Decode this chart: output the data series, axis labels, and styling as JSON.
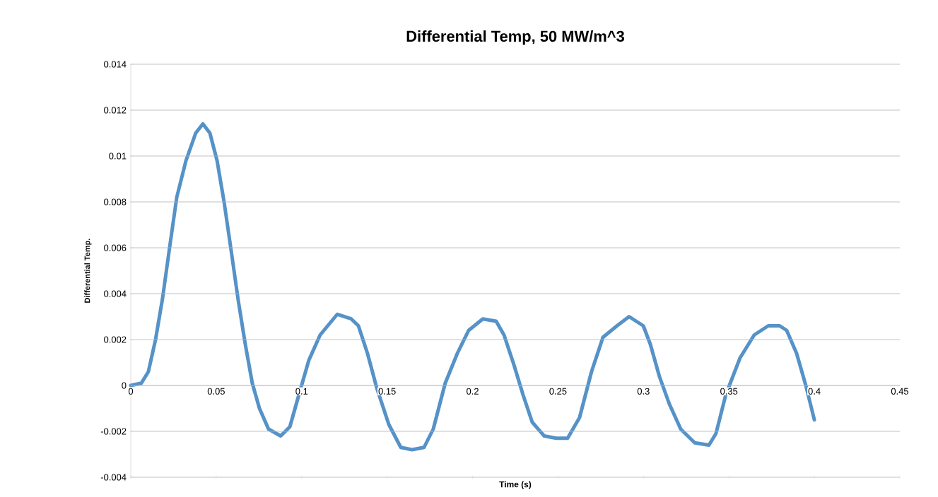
{
  "chart_data": {
    "type": "line",
    "title": "Differential Temp, 50 MW/m^3",
    "xlabel": "Time (s)",
    "ylabel": "Differential Temp.",
    "x": [
      0,
      0.0062,
      0.0103,
      0.0145,
      0.0186,
      0.0227,
      0.0269,
      0.0323,
      0.038,
      0.0422,
      0.0463,
      0.0505,
      0.0546,
      0.0587,
      0.0629,
      0.067,
      0.0711,
      0.0753,
      0.0806,
      0.0877,
      0.0931,
      0.0984,
      0.1042,
      0.1108,
      0.1208,
      0.129,
      0.1332,
      0.1385,
      0.1439,
      0.151,
      0.158,
      0.1646,
      0.1716,
      0.177,
      0.184,
      0.1911,
      0.1977,
      0.206,
      0.2138,
      0.2184,
      0.2242,
      0.2295,
      0.2349,
      0.2419,
      0.249,
      0.2556,
      0.2626,
      0.2696,
      0.2763,
      0.2845,
      0.2916,
      0.2999,
      0.304,
      0.3093,
      0.3151,
      0.3218,
      0.33,
      0.3383,
      0.3424,
      0.3482,
      0.3565,
      0.3648,
      0.373,
      0.3797,
      0.3838,
      0.3896,
      0.395,
      0.4
    ],
    "values": [
      0,
      0.0001,
      0.0006,
      0.002,
      0.0038,
      0.006,
      0.0082,
      0.0098,
      0.011,
      0.0114,
      0.011,
      0.0098,
      0.008,
      0.0059,
      0.0037,
      0.0018,
      0.0001,
      -0.001,
      -0.0019,
      -0.0022,
      -0.0018,
      -0.0004,
      0.0011,
      0.0022,
      0.0031,
      0.0029,
      0.0026,
      0.0014,
      -0.0001,
      -0.0017,
      -0.0027,
      -0.0028,
      -0.0027,
      -0.0019,
      0.0001,
      0.0014,
      0.0024,
      0.0029,
      0.0028,
      0.0022,
      0.0009,
      -0.0004,
      -0.0016,
      -0.0022,
      -0.0023,
      -0.0023,
      -0.0014,
      0.0006,
      0.0021,
      0.0026,
      0.003,
      0.0026,
      0.0018,
      0.0004,
      -0.0008,
      -0.0019,
      -0.0025,
      -0.0026,
      -0.0021,
      -0.0004,
      0.0012,
      0.0022,
      0.0026,
      0.0026,
      0.0024,
      0.0014,
      0,
      -0.0015
    ],
    "color": "#5592c8",
    "xlim": [
      0,
      0.45
    ],
    "ylim": [
      -0.004,
      0.014
    ],
    "xticks": [
      0,
      0.05,
      0.1,
      0.15,
      0.2,
      0.25,
      0.3,
      0.35,
      0.4,
      0.45
    ],
    "yticks": [
      -0.004,
      -0.002,
      0,
      0.002,
      0.004,
      0.006,
      0.008,
      0.01,
      0.012,
      0.014
    ],
    "grid": "y"
  }
}
